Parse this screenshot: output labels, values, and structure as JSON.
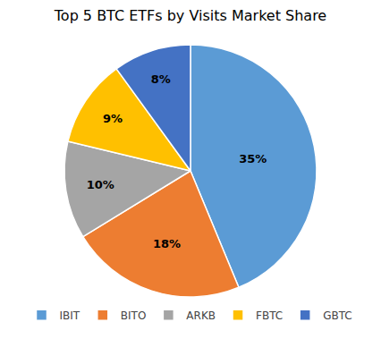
{
  "chart_data": {
    "type": "pie",
    "title": "Top 5 BTC ETFs by Visits Market Share",
    "categories": [
      "IBIT",
      "BITO",
      "ARKB",
      "FBTC",
      "GBTC"
    ],
    "values": [
      35,
      18,
      10,
      9,
      8
    ],
    "value_labels": [
      "35%",
      "18%",
      "10%",
      "9%",
      "8%"
    ],
    "colors": [
      "#5B9BD5",
      "#ED7D31",
      "#A5A5A5",
      "#FFC000",
      "#4472C4"
    ],
    "data_labels": true,
    "legend": "lower center"
  }
}
